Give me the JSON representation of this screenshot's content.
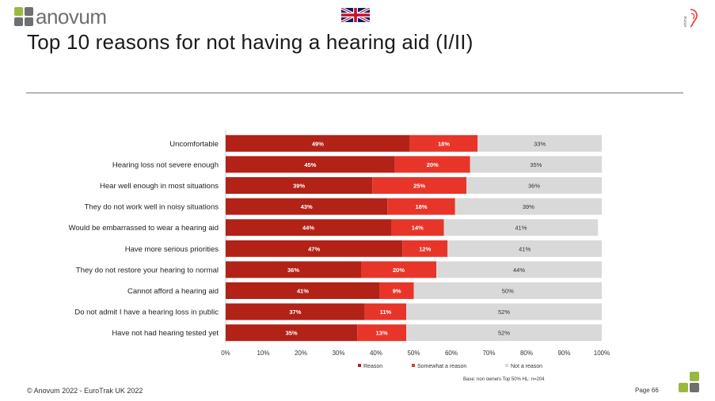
{
  "header": {
    "logo_text": "anovum",
    "logo_colors": [
      "#9bb840",
      "#6d6f71",
      "#6d6f71",
      "#6d6f71"
    ],
    "flag_icon": "uk-flag-icon",
    "partner_logo_icon": "ehima-logo-icon",
    "partner_logo_text": "ehima",
    "title": "Top 10 reasons for not having a hearing aid (I/II)"
  },
  "footer": {
    "copyright": "© Anovum 2022 - EuroTrak UK 2022",
    "page": "Page 66",
    "base_note": "Base: non owners Top 50% HL: n=204"
  },
  "chart_data": {
    "type": "bar",
    "orientation": "horizontal",
    "stacked": true,
    "categories": [
      "Uncomfortable",
      "Hearing loss not severe enough",
      "Hear well enough in most situations",
      "They do not work well in noisy situations",
      "Would be embarrassed to wear a hearing aid",
      "Have more serious priorities",
      "They do not restore your hearing to normal",
      "Cannot afford a hearing aid",
      "Do not admit I have a hearing loss in public",
      "Have not had hearing tested yet"
    ],
    "series": [
      {
        "name": "Reason",
        "color": "#b22217",
        "values": [
          49,
          45,
          39,
          43,
          44,
          47,
          36,
          41,
          37,
          35
        ]
      },
      {
        "name": "Somewhat a reason",
        "color": "#e8352a",
        "values": [
          18,
          20,
          25,
          18,
          14,
          12,
          20,
          9,
          11,
          13
        ]
      },
      {
        "name": "Not a reason",
        "color": "#d9d9d9",
        "values": [
          33,
          35,
          36,
          39,
          41,
          41,
          44,
          50,
          52,
          52
        ]
      }
    ],
    "x_ticks": [
      "0%",
      "10%",
      "20%",
      "30%",
      "40%",
      "50%",
      "60%",
      "70%",
      "80%",
      "90%",
      "100%"
    ],
    "xlim": [
      0,
      100
    ],
    "legend_position": "bottom",
    "grid": false
  }
}
